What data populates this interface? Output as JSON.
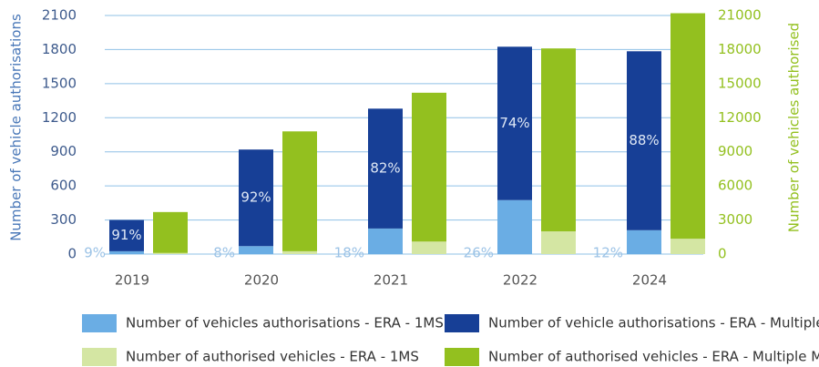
{
  "chart_data": {
    "type": "stacked_bar_dual_axis",
    "categories": [
      "2019",
      "2020",
      "2021",
      "2022",
      "2024"
    ],
    "ylabel": "Number of vehicle authorisations",
    "y2label": "Number of vehicles authorised",
    "ylim": [
      0,
      2100
    ],
    "yticks": [
      0,
      300,
      600,
      900,
      1200,
      1500,
      1800,
      2100
    ],
    "y2lim": [
      0,
      21000
    ],
    "y2ticks": [
      0,
      3000,
      6000,
      9000,
      12000,
      15000,
      18000,
      21000
    ],
    "grid": true,
    "legend": "bottom",
    "series": [
      {
        "name": "Number of vehicles authorisations - ERA - 1MS",
        "color": "#6aade4",
        "axis": "y",
        "values": [
          25,
          70,
          225,
          475,
          210
        ],
        "share_labels": [
          "9%",
          "8%",
          "18%",
          "26%",
          "12%"
        ]
      },
      {
        "name": "Number of vehicle authorisations - ERA - Multiple MSs",
        "color": "#173f96",
        "axis": "y",
        "values": [
          275,
          850,
          1055,
          1350,
          1575
        ],
        "share_labels": [
          "91%",
          "92%",
          "82%",
          "74%",
          "88%"
        ]
      },
      {
        "name": "Number of authorised vehicles - ERA - 1MS",
        "color": "#d4e6a3",
        "axis": "y2",
        "values": [
          100,
          250,
          1100,
          2000,
          1350
        ]
      },
      {
        "name": "Number of authorised vehicles - ERA - Multiple MSs",
        "color": "#93c01f",
        "axis": "y2",
        "values": [
          3600,
          10550,
          13100,
          16100,
          19850
        ]
      }
    ]
  }
}
